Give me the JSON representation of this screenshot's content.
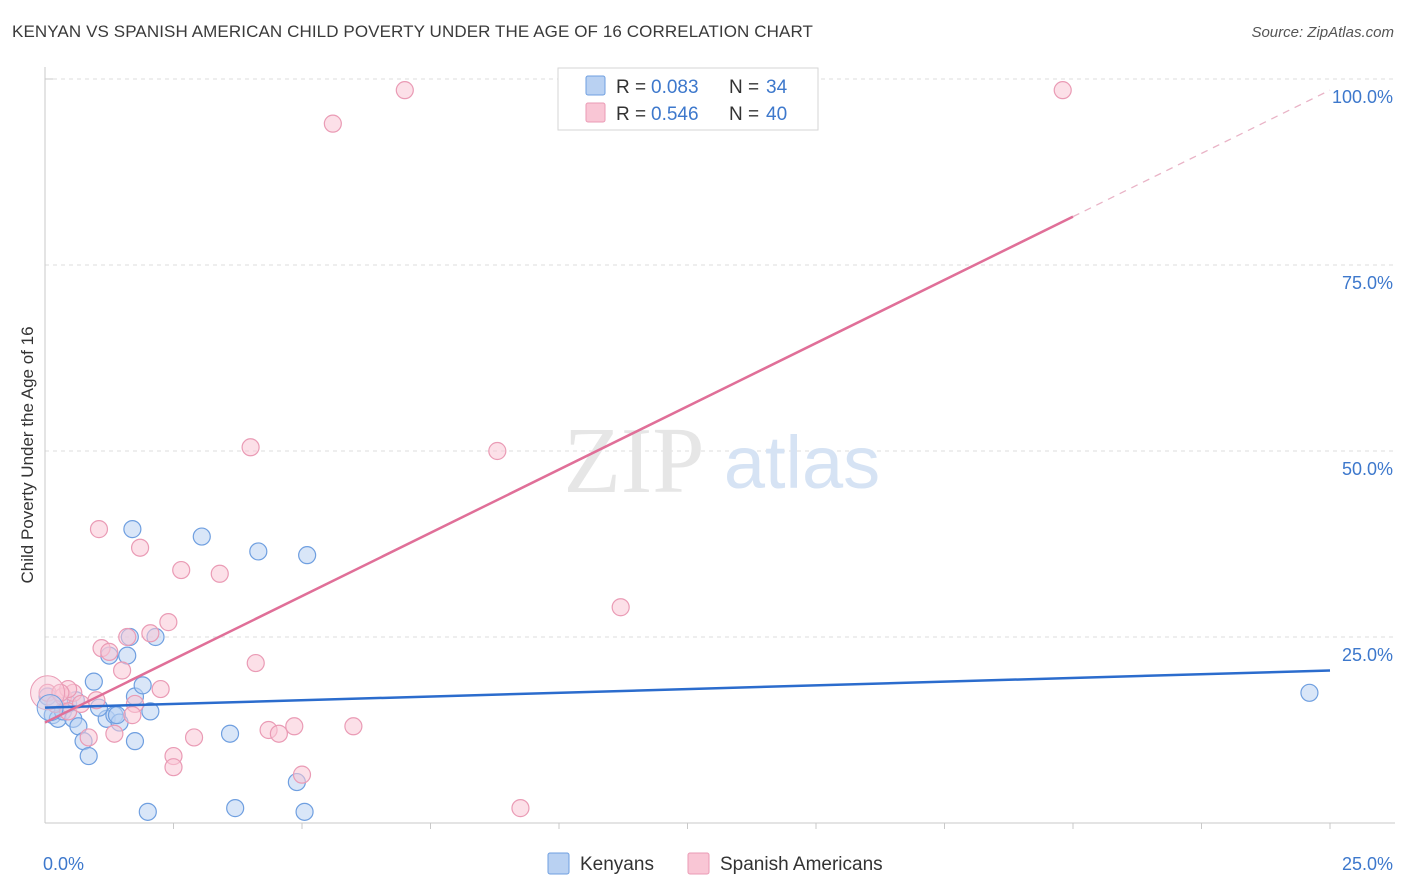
{
  "title": "KENYAN VS SPANISH AMERICAN CHILD POVERTY UNDER THE AGE OF 16 CORRELATION CHART",
  "source": "Source: ZipAtlas.com",
  "watermark": {
    "zip": "ZIP",
    "atlas": "atlas"
  },
  "colors": {
    "kenyans_fill": "#b9d1f2",
    "kenyans_stroke": "#6f9fe0",
    "kenyans_line": "#2b6ccd",
    "spanish_fill": "#f9c6d5",
    "spanish_stroke": "#ea9bb5",
    "spanish_line": "#e06f98",
    "tick_text": "#3d78cc",
    "grid": "#dddddd"
  },
  "legend": {
    "rows": [
      {
        "r_label": "R = ",
        "r_value": "0.083",
        "n_label": "N = ",
        "n_value": "34"
      },
      {
        "r_label": "R = ",
        "r_value": "0.546",
        "n_label": "N = ",
        "n_value": "40"
      }
    ]
  },
  "chart_data": {
    "type": "scatter",
    "title": "KENYAN VS SPANISH AMERICAN CHILD POVERTY UNDER THE AGE OF 16 CORRELATION CHART",
    "xlabel": "",
    "ylabel": "Child Poverty Under the Age of 16",
    "xlim": [
      0,
      25
    ],
    "ylim": [
      0,
      100
    ],
    "x_tick_labels": [
      {
        "value": 0,
        "label": "0.0%"
      },
      {
        "value": 25,
        "label": "25.0%"
      }
    ],
    "y_tick_labels": [
      {
        "value": 25,
        "label": "25.0%"
      },
      {
        "value": 50,
        "label": "50.0%"
      },
      {
        "value": 75,
        "label": "75.0%"
      },
      {
        "value": 100,
        "label": "100.0%"
      }
    ],
    "series": [
      {
        "name": "Kenyans",
        "R": 0.083,
        "N": 34,
        "trend": {
          "x0": 0,
          "y0": 15.5,
          "x1": 25,
          "y1": 20.5
        },
        "points": [
          [
            0.05,
            17.0
          ],
          [
            0.15,
            14.5
          ],
          [
            0.25,
            14.0
          ],
          [
            0.35,
            15.0
          ],
          [
            0.45,
            16.0
          ],
          [
            0.55,
            14.0
          ],
          [
            0.65,
            13.0
          ],
          [
            0.75,
            11.0
          ],
          [
            0.85,
            9.0
          ],
          [
            0.95,
            19.0
          ],
          [
            1.2,
            14.0
          ],
          [
            1.25,
            22.5
          ],
          [
            1.35,
            14.5
          ],
          [
            1.45,
            13.5
          ],
          [
            1.6,
            22.5
          ],
          [
            1.75,
            17.0
          ],
          [
            1.9,
            18.5
          ],
          [
            1.75,
            11.0
          ],
          [
            1.65,
            25.0
          ],
          [
            1.7,
            39.5
          ],
          [
            2.05,
            15.0
          ],
          [
            2.15,
            25.0
          ],
          [
            3.05,
            38.5
          ],
          [
            4.15,
            36.5
          ],
          [
            5.1,
            36.0
          ],
          [
            2.0,
            1.5
          ],
          [
            3.7,
            2.0
          ],
          [
            4.9,
            5.5
          ],
          [
            5.05,
            1.5
          ],
          [
            3.6,
            12.0
          ],
          [
            1.05,
            15.5
          ],
          [
            0.6,
            16.5
          ],
          [
            1.4,
            14.5
          ],
          [
            24.6,
            17.5
          ]
        ]
      },
      {
        "name": "Spanish Americans",
        "R": 0.546,
        "N": 40,
        "trend": {
          "x0": 0,
          "y0": 13.5,
          "x1": 20,
          "y1": 81.5,
          "dash_to_x": 25,
          "dash_to_y": 98.5
        },
        "points": [
          [
            0.05,
            17.5
          ],
          [
            0.2,
            16.0
          ],
          [
            0.35,
            17.0
          ],
          [
            0.45,
            15.0
          ],
          [
            0.55,
            17.5
          ],
          [
            0.7,
            16.0
          ],
          [
            0.85,
            11.5
          ],
          [
            1.0,
            16.5
          ],
          [
            1.1,
            23.5
          ],
          [
            1.35,
            12.0
          ],
          [
            1.25,
            23.0
          ],
          [
            1.6,
            25.0
          ],
          [
            1.5,
            20.5
          ],
          [
            1.75,
            16.0
          ],
          [
            1.7,
            14.5
          ],
          [
            1.85,
            37.0
          ],
          [
            2.05,
            25.5
          ],
          [
            2.25,
            18.0
          ],
          [
            2.4,
            27.0
          ],
          [
            2.65,
            34.0
          ],
          [
            2.5,
            9.0
          ],
          [
            2.5,
            7.5
          ],
          [
            2.9,
            11.5
          ],
          [
            3.4,
            33.5
          ],
          [
            4.0,
            50.5
          ],
          [
            4.1,
            21.5
          ],
          [
            4.35,
            12.5
          ],
          [
            4.55,
            12.0
          ],
          [
            4.85,
            13.0
          ],
          [
            5.0,
            6.5
          ],
          [
            5.6,
            94.0
          ],
          [
            7.0,
            98.5
          ],
          [
            6.0,
            13.0
          ],
          [
            8.8,
            50.0
          ],
          [
            9.25,
            2.0
          ],
          [
            11.2,
            29.0
          ],
          [
            19.8,
            98.5
          ],
          [
            1.05,
            39.5
          ],
          [
            0.45,
            18.0
          ],
          [
            0.3,
            17.5
          ]
        ]
      }
    ],
    "bottom_legend": [
      "Kenyans",
      "Spanish Americans"
    ]
  }
}
